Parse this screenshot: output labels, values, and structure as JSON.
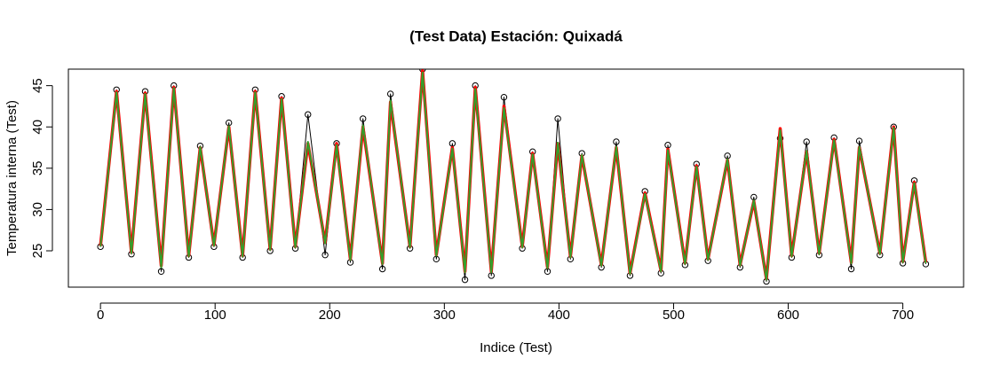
{
  "chart_data": {
    "type": "line",
    "title": "(Test Data) Estación: Quixadá",
    "x_label": "Indice (Test)",
    "y_label": "Temperatura interna (Test)",
    "x": [
      0,
      14,
      27,
      39,
      53,
      64,
      77,
      87,
      99,
      112,
      124,
      135,
      148,
      158,
      170,
      181,
      196,
      206,
      218,
      229,
      246,
      253,
      270,
      281,
      293,
      307,
      318,
      327,
      341,
      352,
      368,
      377,
      390,
      399,
      410,
      420,
      437,
      450,
      462,
      475,
      489,
      495,
      510,
      520,
      530,
      547,
      558,
      570,
      581,
      593,
      603,
      616,
      627,
      640,
      655,
      662,
      680,
      692,
      700,
      710,
      720
    ],
    "series": [
      {
        "color": "#000000",
        "marker": "circle",
        "values": [
          25.5,
          44.5,
          24.6,
          44.3,
          22.5,
          45,
          24.2,
          37.7,
          25.5,
          40.5,
          24.2,
          44.5,
          25,
          43.7,
          25.3,
          41.5,
          24.5,
          38,
          23.6,
          41,
          22.8,
          44,
          25.3,
          47,
          24,
          38,
          21.5,
          45,
          22,
          43.6,
          25.3,
          37,
          22.5,
          41,
          24,
          36.8,
          23,
          38.2,
          22,
          32.2,
          22.3,
          37.8,
          23.3,
          35.5,
          23.8,
          36.5,
          23,
          31.5,
          21.3,
          38.6,
          24.2,
          38.2,
          24.5,
          38.7,
          22.8,
          38.3,
          24.5,
          40,
          23.5,
          33.5,
          23.4
        ]
      },
      {
        "color": "#ff0000",
        "values": [
          25.6,
          44.3,
          24.8,
          44.1,
          23.2,
          44.8,
          24.4,
          37.5,
          25.7,
          40,
          24.4,
          44.3,
          25.2,
          43.5,
          25.5,
          38,
          26,
          38,
          24,
          40,
          23.5,
          43,
          25.5,
          46.8,
          24.5,
          37.5,
          22.5,
          44.8,
          22.5,
          42.5,
          25.5,
          36.8,
          23,
          38,
          24.3,
          36.5,
          23.3,
          37.5,
          22.3,
          32,
          22.6,
          37.3,
          23.5,
          35.3,
          24,
          36,
          23.3,
          31,
          21.6,
          39.8,
          24.4,
          37,
          24.7,
          38.5,
          23.6,
          37.5,
          24.7,
          40,
          23.7,
          33.3,
          23.6
        ]
      },
      {
        "color": "#33a02c",
        "values": [
          25.5,
          44.2,
          24.7,
          44,
          23,
          44.7,
          24.3,
          37.6,
          25.6,
          40.1,
          24.3,
          44.2,
          25.1,
          43.4,
          25.4,
          38.2,
          25.9,
          37.8,
          23.9,
          40.2,
          23.4,
          43.2,
          25.4,
          46.6,
          24.4,
          37.4,
          22.4,
          44.6,
          22.4,
          42.3,
          25.4,
          36.7,
          22.9,
          38.1,
          24.2,
          36.6,
          23.2,
          37.6,
          22.2,
          31.9,
          22.5,
          37.2,
          23.4,
          35.2,
          23.9,
          36.1,
          23.2,
          31.1,
          21.5,
          39.6,
          24.3,
          37.1,
          24.6,
          38.4,
          23.5,
          37.6,
          24.6,
          39.9,
          23.6,
          33.2,
          23.5
        ]
      }
    ],
    "xlim": [
      -28,
      753
    ],
    "ylim": [
      20.6,
      47
    ],
    "xticks": [
      0,
      100,
      200,
      300,
      400,
      500,
      600,
      700
    ],
    "yticks": [
      25,
      30,
      35,
      40,
      45
    ]
  }
}
